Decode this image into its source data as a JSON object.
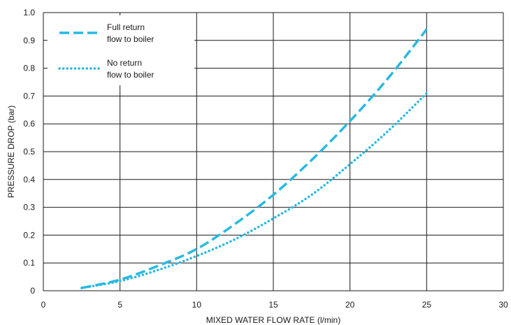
{
  "chart_data": {
    "type": "line",
    "xlabel": "MIXED WATER FLOW RATE (l/min)",
    "ylabel": "PRESSURE DROP (bar)",
    "xlim": [
      0,
      30
    ],
    "ylim": [
      0,
      1.0
    ],
    "x_ticks": [
      "0",
      "5",
      "10",
      "15",
      "20",
      "25",
      "30"
    ],
    "y_ticks": [
      "0",
      "0.1",
      "0.2",
      "0.3",
      "0.4",
      "0.5",
      "0.6",
      "0.7",
      "0.8",
      "0.9",
      "1.0"
    ],
    "grid": true,
    "legend_placement": "top-left",
    "series": [
      {
        "name": "Full return flow to boiler",
        "legend_lines": [
          "Full return",
          "flow to boiler"
        ],
        "style": "dashed",
        "color": "#29b9e3",
        "x": [
          2.5,
          5,
          7.5,
          10,
          12.5,
          15,
          17.5,
          20,
          22.5,
          25
        ],
        "y": [
          0.01,
          0.04,
          0.09,
          0.15,
          0.24,
          0.345,
          0.47,
          0.61,
          0.765,
          0.94
        ]
      },
      {
        "name": "No return flow to boiler",
        "legend_lines": [
          "No return",
          "flow to boiler"
        ],
        "style": "dotted",
        "color": "#29b9e3",
        "x": [
          2.5,
          5,
          7.5,
          10,
          12.5,
          15,
          17.5,
          20,
          22.5,
          25
        ],
        "y": [
          0.01,
          0.035,
          0.075,
          0.125,
          0.185,
          0.26,
          0.345,
          0.455,
          0.575,
          0.71
        ]
      }
    ]
  }
}
